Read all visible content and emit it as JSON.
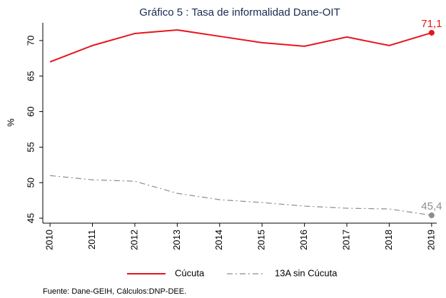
{
  "chart_data": {
    "type": "line",
    "title": "Gráfico 5 : Tasa de informalidad Dane-OIT",
    "y_label": "%",
    "source": "Fuente: Dane-GEIH, Cálculos:DNP-DEE.",
    "x": [
      2010,
      2011,
      2012,
      2013,
      2014,
      2015,
      2016,
      2017,
      2018,
      2019
    ],
    "xlim": [
      2009.83,
      2019.12
    ],
    "xticks": [
      2010,
      2011,
      2012,
      2013,
      2014,
      2015,
      2016,
      2017,
      2018,
      2019
    ],
    "ylim": [
      44.3,
      72.5
    ],
    "yticks": [
      45,
      50,
      55,
      60,
      65,
      70
    ],
    "grid": false,
    "legend": "bottom",
    "series": [
      {
        "name": "Cúcuta",
        "color": "#e8141c",
        "dash": "solid",
        "values": [
          67.0,
          69.3,
          71.0,
          71.5,
          70.6,
          69.7,
          69.2,
          70.5,
          69.3,
          71.1
        ],
        "value_labels": [
          null,
          null,
          null,
          null,
          null,
          null,
          null,
          null,
          null,
          "71,1"
        ]
      },
      {
        "name": "13A sin Cúcuta",
        "color": "#8c8c8c",
        "dash": "dash-dot",
        "values": [
          51.0,
          50.4,
          50.2,
          48.5,
          47.6,
          47.2,
          46.7,
          46.4,
          46.3,
          45.4
        ],
        "value_labels": [
          null,
          null,
          null,
          null,
          null,
          null,
          null,
          null,
          null,
          "45,4"
        ]
      }
    ]
  }
}
